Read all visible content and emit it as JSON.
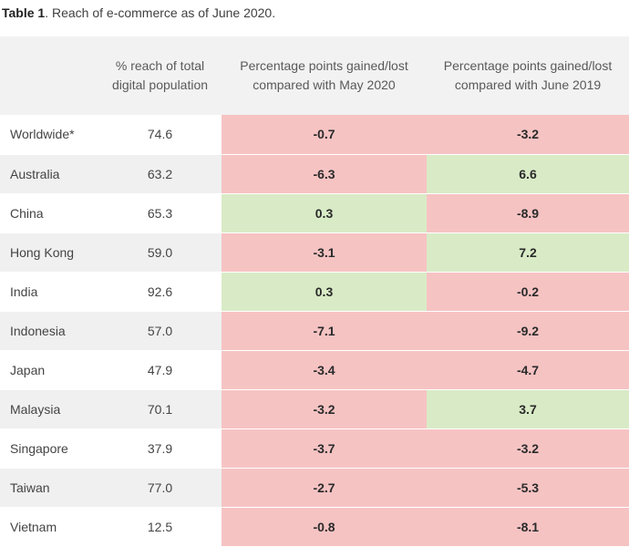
{
  "caption": {
    "label": "Table 1",
    "text": ". Reach of e-commerce as of June 2020."
  },
  "headers": {
    "country": "",
    "reach": "% reach of total digital population",
    "may": "Percentage points gained/lost compared with May 2020",
    "june": "Percentage points gained/lost compared with June 2019"
  },
  "colors": {
    "loss": "#f6c3c3",
    "gain": "#d9ebc6",
    "header_bg": "#f2f2f2",
    "alt_row": "#f0f0f0"
  },
  "rows": [
    {
      "country": "Worldwide*",
      "reach": "74.6",
      "may": "-0.7",
      "june": "-3.2"
    },
    {
      "country": "Australia",
      "reach": "63.2",
      "may": "-6.3",
      "june": "6.6"
    },
    {
      "country": "China",
      "reach": "65.3",
      "may": "0.3",
      "june": "-8.9"
    },
    {
      "country": "Hong Kong",
      "reach": "59.0",
      "may": "-3.1",
      "june": "7.2"
    },
    {
      "country": "India",
      "reach": "92.6",
      "may": "0.3",
      "june": "-0.2"
    },
    {
      "country": "Indonesia",
      "reach": "57.0",
      "may": "-7.1",
      "june": "-9.2"
    },
    {
      "country": "Japan",
      "reach": "47.9",
      "may": "-3.4",
      "june": "-4.7"
    },
    {
      "country": "Malaysia",
      "reach": "70.1",
      "may": "-3.2",
      "june": "3.7"
    },
    {
      "country": "Singapore",
      "reach": "37.9",
      "may": "-3.7",
      "june": "-3.2"
    },
    {
      "country": "Taiwan",
      "reach": "77.0",
      "may": "-2.7",
      "june": "-5.3"
    },
    {
      "country": "Vietnam",
      "reach": "12.5",
      "may": "-0.8",
      "june": "-8.1"
    }
  ]
}
